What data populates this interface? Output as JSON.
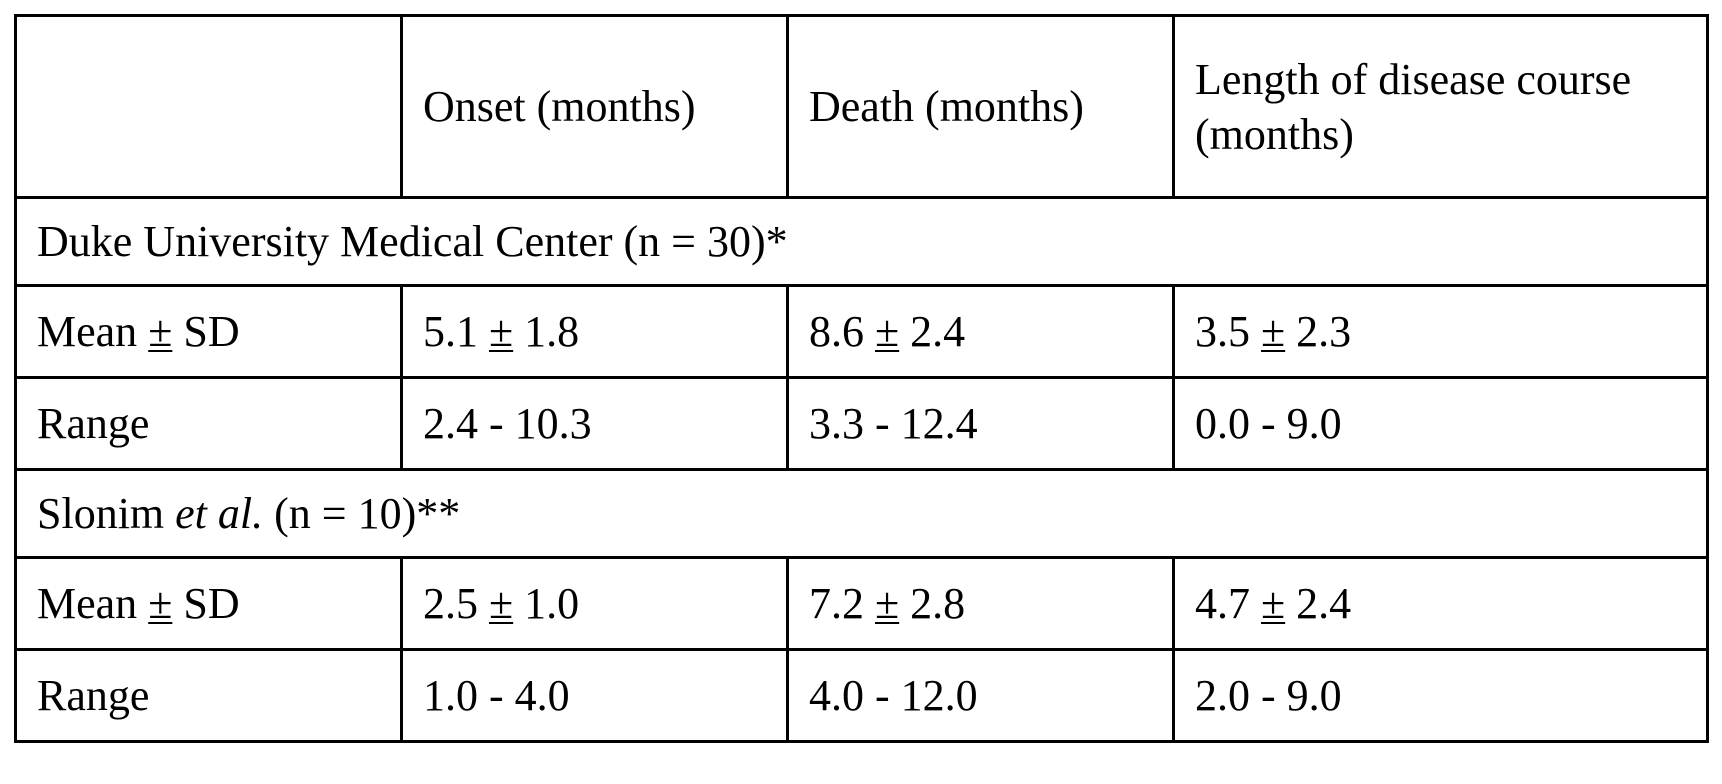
{
  "table": {
    "header": {
      "empty": "",
      "col1": "Onset (months)",
      "col2": "Death (months)",
      "col3": "Length of disease course (months)"
    },
    "groups": [
      {
        "title": "Duke University Medical Center",
        "title_suffix": " (n = 30)*",
        "rows": [
          {
            "label_a": "Mean ",
            "label_pm": "±",
            "label_b": " SD",
            "onset": {
              "mean": "5.1",
              "pm": "±",
              "sd": "1.8"
            },
            "death": {
              "mean": "8.6",
              "pm": "±",
              "sd": "2.4"
            },
            "length": {
              "mean": "3.5",
              "pm": "±",
              "sd": "2.3"
            }
          },
          {
            "label": "Range",
            "onset": "2.4 - 10.3",
            "death": "3.3 - 12.4",
            "length": "0.0 - 9.0"
          }
        ]
      },
      {
        "title": "Slonim ",
        "title_italic": "et al.",
        "title_suffix": " (n = 10)**",
        "rows": [
          {
            "label_a": "Mean ",
            "label_pm": "±",
            "label_b": " SD",
            "onset": {
              "mean": "2.5",
              "pm": "±",
              "sd": "1.0"
            },
            "death": {
              "mean": "7.2",
              "pm": "±",
              "sd": "2.8"
            },
            "length": {
              "mean": "4.7",
              "pm": "±",
              "sd": "2.4"
            }
          },
          {
            "label": "Range",
            "onset": "1.0 - 4.0",
            "death": "4.0 - 12.0",
            "length": "2.0 - 9.0"
          }
        ]
      }
    ]
  }
}
